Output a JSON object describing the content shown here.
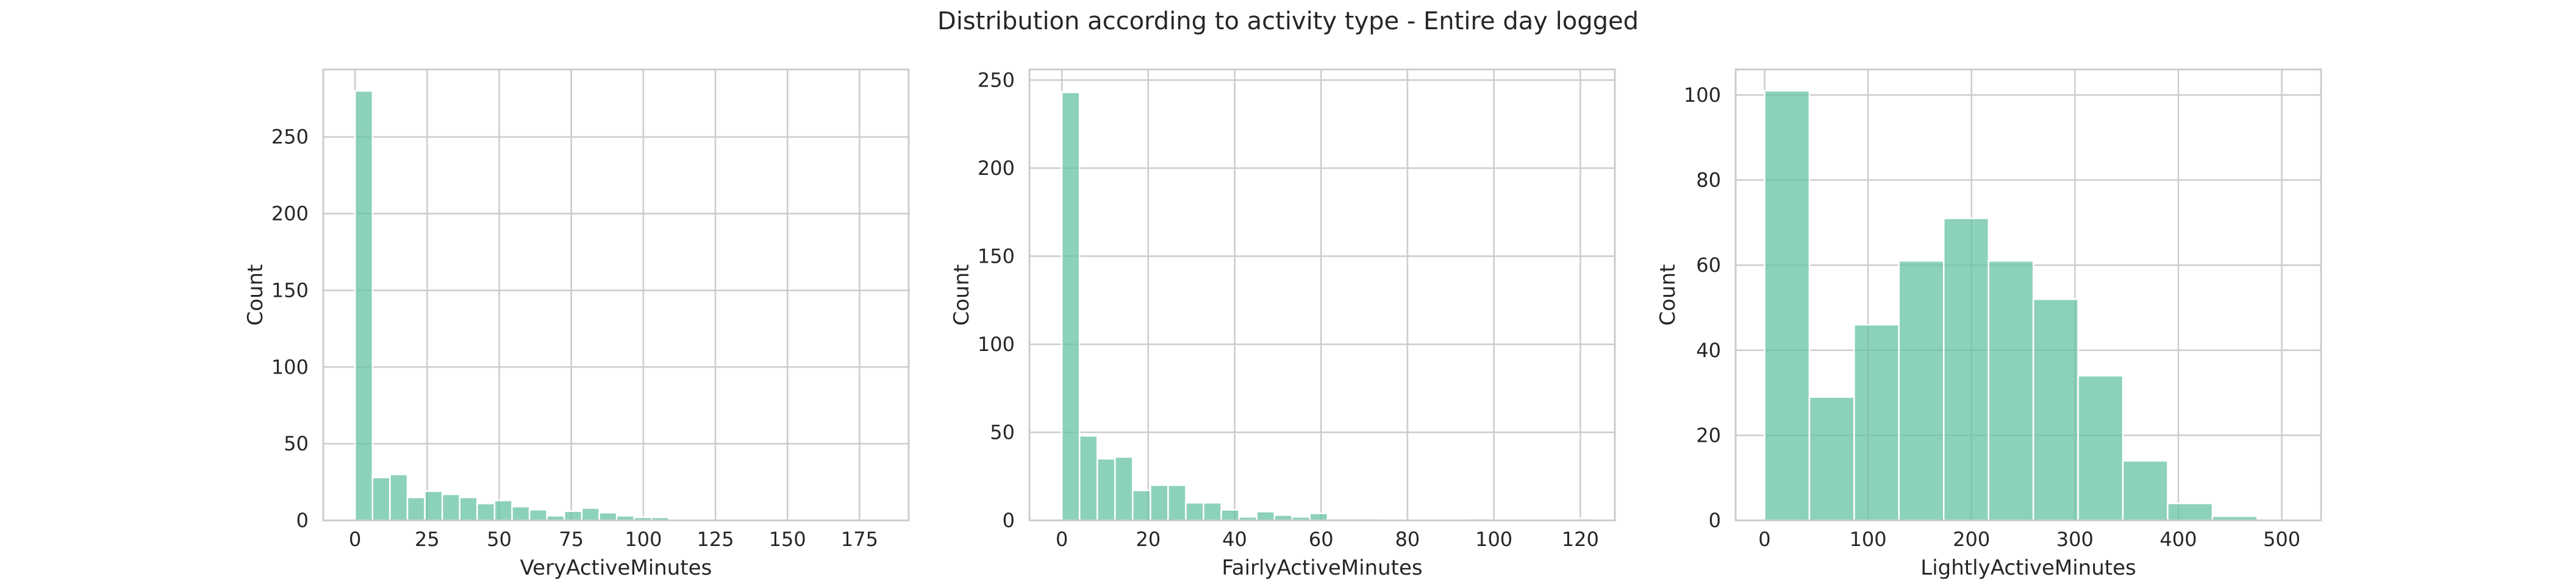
{
  "title": "Distribution according to activity type - Entire day logged",
  "colors": {
    "bar": "#66c2a5",
    "grid": "#cccccc",
    "text": "#262626"
  },
  "chart_data": [
    {
      "type": "bar",
      "subtype": "histogram",
      "xlabel": "VeryActiveMinutes",
      "ylabel": "Count",
      "xlim": [
        -11.05,
        192.05
      ],
      "ylim": [
        0,
        294
      ],
      "xticks": [
        0,
        25,
        50,
        75,
        100,
        125,
        150,
        175
      ],
      "yticks": [
        0,
        50,
        100,
        150,
        200,
        250
      ],
      "bin_start": 0,
      "bin_width": 6.05,
      "values": [
        280,
        28,
        30,
        15,
        19,
        17,
        15,
        11,
        13,
        9,
        7,
        3,
        6,
        8,
        5,
        3,
        2,
        2,
        1,
        1,
        0,
        0,
        0,
        0,
        0,
        0,
        0,
        0,
        0,
        1
      ],
      "grid": true
    },
    {
      "type": "bar",
      "subtype": "histogram",
      "xlabel": "FairlyActiveMinutes",
      "ylabel": "Count",
      "xlim": [
        -7.5,
        128
      ],
      "ylim": [
        0,
        256
      ],
      "xticks": [
        0,
        20,
        40,
        60,
        80,
        100,
        120
      ],
      "yticks": [
        0,
        50,
        100,
        150,
        200,
        250
      ],
      "bin_start": 0,
      "bin_width": 4.1,
      "values": [
        243,
        48,
        35,
        36,
        17,
        20,
        20,
        10,
        10,
        6,
        2,
        5,
        3,
        2,
        4,
        1,
        1,
        1,
        0,
        0,
        0,
        0,
        0,
        1,
        0,
        0,
        0,
        0,
        0,
        1
      ],
      "grid": true
    },
    {
      "type": "bar",
      "subtype": "histogram",
      "xlabel": "LightlyActiveMinutes",
      "ylabel": "Count",
      "xlim": [
        -28,
        538
      ],
      "ylim": [
        0,
        106
      ],
      "xticks": [
        0,
        100,
        200,
        300,
        400,
        500
      ],
      "yticks": [
        0,
        20,
        40,
        60,
        80,
        100
      ],
      "bin_start": 0,
      "bin_width": 43.3,
      "values": [
        101,
        29,
        46,
        61,
        71,
        61,
        52,
        34,
        14,
        4,
        1
      ],
      "grid": true
    }
  ]
}
